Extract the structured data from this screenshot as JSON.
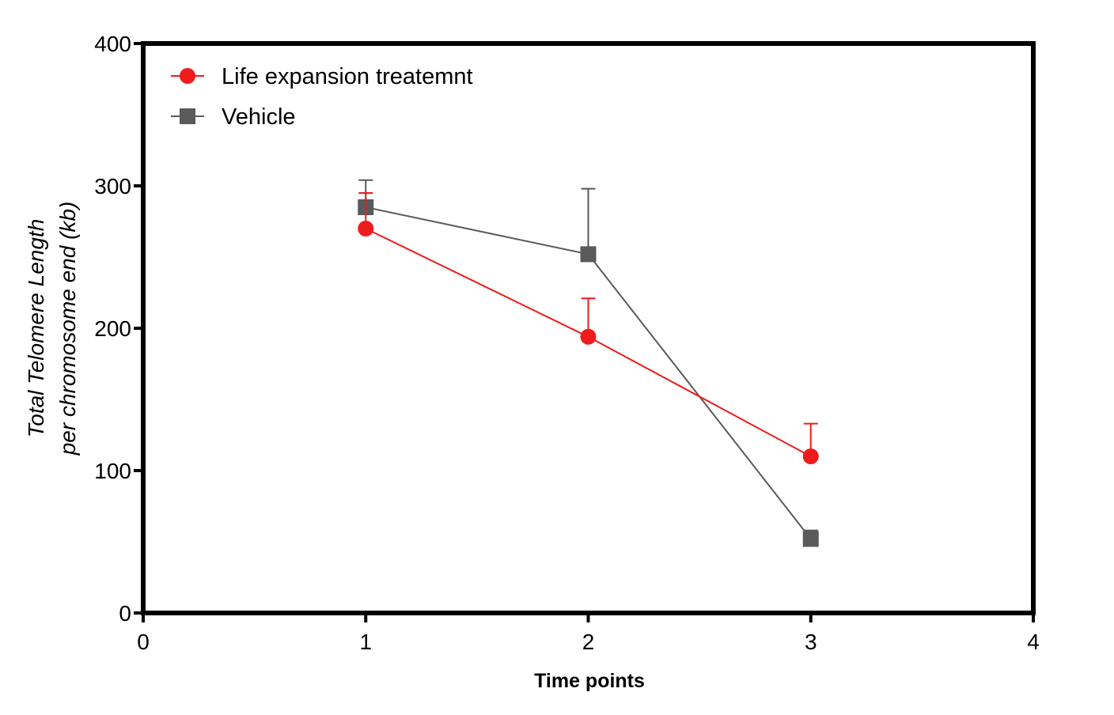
{
  "chart_data": {
    "type": "line",
    "title": "",
    "xlabel": "Time points",
    "ylabel_lines": [
      "Total Telomere Length",
      "per chromosome end (kb)"
    ],
    "xlim": [
      0,
      4
    ],
    "ylim": [
      0,
      400
    ],
    "x_ticks": [
      0,
      1,
      2,
      3,
      4
    ],
    "y_ticks": [
      0,
      100,
      200,
      300,
      400
    ],
    "grid": false,
    "legend_position": "top-left",
    "series": [
      {
        "name": "Life expansion treatemnt",
        "color": "#ee1c1c",
        "marker": "circle",
        "x": [
          1,
          2,
          3
        ],
        "y": [
          270,
          194,
          110
        ],
        "error_upper": [
          25,
          27,
          23
        ]
      },
      {
        "name": "Vehicle",
        "color": "#5a5a5a",
        "marker": "square",
        "x": [
          1,
          2,
          3
        ],
        "y": [
          285,
          252,
          52
        ],
        "error_upper": [
          19,
          46,
          6
        ]
      }
    ]
  }
}
